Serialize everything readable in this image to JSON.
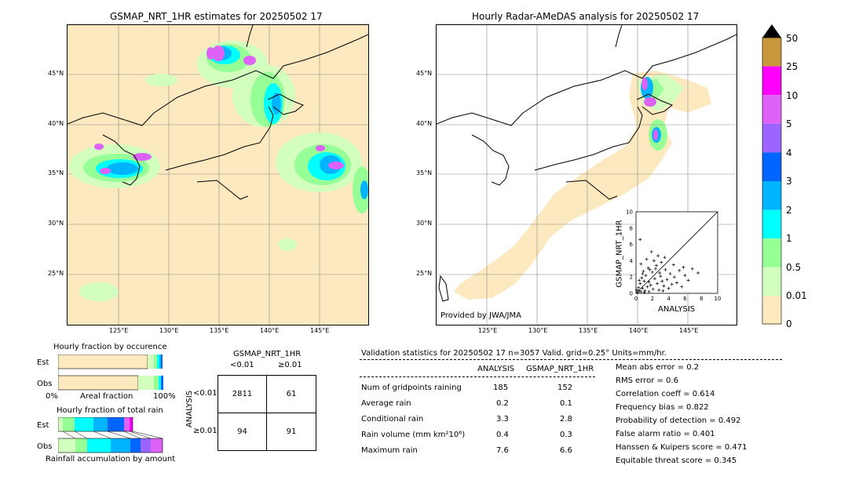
{
  "left_map": {
    "title": "GSMAP_NRT_1HR estimates for 20250502 17",
    "lat_labels": [
      "45°N",
      "40°N",
      "35°N",
      "30°N",
      "25°N"
    ],
    "lon_labels": [
      "125°E",
      "130°E",
      "135°E",
      "140°E",
      "145°E"
    ]
  },
  "right_map": {
    "title": "Hourly Radar-AMeDAS analysis for 20250502 17",
    "lat_labels": [
      "45°N",
      "40°N",
      "35°N",
      "30°N",
      "25°N"
    ],
    "lon_labels": [
      "125°E",
      "130°E",
      "135°E",
      "140°E",
      "145°E"
    ],
    "credit": "Provided by JWA/JMA"
  },
  "colorbar": {
    "labels": [
      "50",
      "25",
      "10",
      "5",
      "4",
      "3",
      "2",
      "1",
      "0.5",
      "0.01",
      "0"
    ],
    "colors": [
      "#c8963c",
      "#ff00ff",
      "#de62f7",
      "#9c64ff",
      "#0064ff",
      "#00b4ff",
      "#00ffff",
      "#96ff96",
      "#d2ffbe",
      "#fde9bf"
    ]
  },
  "occurrence": {
    "title": "Hourly fraction by occurence",
    "row_est": "Est",
    "row_obs": "Obs",
    "axis_left": "0%",
    "axis_mid": "Areal fraction",
    "axis_right": "100%"
  },
  "total_rain": {
    "title": "Hourly fraction of total rain",
    "row_est": "Est",
    "row_obs": "Obs",
    "axis_label": "Rainfall accumulation by amount"
  },
  "contingency": {
    "col_title": "GSMAP_NRT_1HR",
    "col_lt": "<0.01",
    "col_ge": "≥0.01",
    "row_title": "ANALYSIS",
    "row_lt": "<0.01",
    "row_ge": "≥0.01",
    "a": "2811",
    "b": "61",
    "c": "94",
    "d": "91"
  },
  "validation": {
    "header": "Validation statistics for 20250502 17  n=3057 Valid. grid=0.25° Units=mm/hr.",
    "col_analysis": "ANALYSIS",
    "col_gsmap": "GSMAP_NRT_1HR",
    "rows": [
      {
        "label": "Num of gridpoints raining",
        "analysis": "185",
        "gsmap": "152"
      },
      {
        "label": "Average rain",
        "analysis": "0.2",
        "gsmap": "0.1"
      },
      {
        "label": "Conditional rain",
        "analysis": "3.3",
        "gsmap": "2.8"
      },
      {
        "label": "Rain volume (mm km²10⁶)",
        "analysis": "0.4",
        "gsmap": "0.3"
      },
      {
        "label": "Maximum rain",
        "analysis": "7.6",
        "gsmap": "6.6"
      }
    ],
    "scores": [
      "Mean abs error =    0.2",
      "RMS error =    0.6",
      "Correlation coeff =  0.614",
      "Frequency bias =  0.822",
      "Probability of detection =  0.492",
      "False alarm ratio =  0.401",
      "Hanssen & Kuipers score =  0.471",
      "Equitable threat score =  0.345"
    ]
  },
  "chart_data": {
    "type": "scatter",
    "xlabel": "ANALYSIS",
    "ylabel": "GSMAP_NRT_1HR",
    "xlim": [
      0,
      10
    ],
    "ylim": [
      0,
      10
    ],
    "x_ticks": [
      "0",
      "2",
      "4",
      "6",
      "8",
      "10"
    ],
    "y_ticks": [
      "0",
      "2",
      "4",
      "6",
      "8",
      "10"
    ],
    "points": [
      [
        0.2,
        0.1
      ],
      [
        0.4,
        0.3
      ],
      [
        0.5,
        1.2
      ],
      [
        0.6,
        0.2
      ],
      [
        0.8,
        0.6
      ],
      [
        1.0,
        1.5
      ],
      [
        1.1,
        0.3
      ],
      [
        1.2,
        2.2
      ],
      [
        1.4,
        0.8
      ],
      [
        1.5,
        3.1
      ],
      [
        1.6,
        0.2
      ],
      [
        1.8,
        1.0
      ],
      [
        2.0,
        2.6
      ],
      [
        2.1,
        0.5
      ],
      [
        2.3,
        1.8
      ],
      [
        2.5,
        3.4
      ],
      [
        2.6,
        1.2
      ],
      [
        2.8,
        0.4
      ],
      [
        3.0,
        2.1
      ],
      [
        3.2,
        1.5
      ],
      [
        3.4,
        0.9
      ],
      [
        3.6,
        2.9
      ],
      [
        3.8,
        1.7
      ],
      [
        4.0,
        0.6
      ],
      [
        4.2,
        2.4
      ],
      [
        4.4,
        1.1
      ],
      [
        4.7,
        2.0
      ],
      [
        5.0,
        1.3
      ],
      [
        5.3,
        2.8
      ],
      [
        5.6,
        0.8
      ],
      [
        6.0,
        2.2
      ],
      [
        6.4,
        1.6
      ],
      [
        6.9,
        3.0
      ],
      [
        7.6,
        2.5
      ],
      [
        0.3,
        0.7
      ],
      [
        0.7,
        1.9
      ],
      [
        0.9,
        2.7
      ],
      [
        1.3,
        4.2
      ],
      [
        1.7,
        2.9
      ],
      [
        2.2,
        4.0
      ],
      [
        2.7,
        4.6
      ],
      [
        3.1,
        3.8
      ],
      [
        3.5,
        4.4
      ],
      [
        0.5,
        6.6
      ],
      [
        1.9,
        5.1
      ],
      [
        2.4,
        3.0
      ],
      [
        0.6,
        3.6
      ],
      [
        1.0,
        0.1
      ],
      [
        0.1,
        0.4
      ],
      [
        0.8,
        2.4
      ],
      [
        1.6,
        1.4
      ],
      [
        2.9,
        2.5
      ],
      [
        3.3,
        0.3
      ],
      [
        4.6,
        3.5
      ],
      [
        5.8,
        3.2
      ],
      [
        0.4,
        1.6
      ]
    ]
  }
}
